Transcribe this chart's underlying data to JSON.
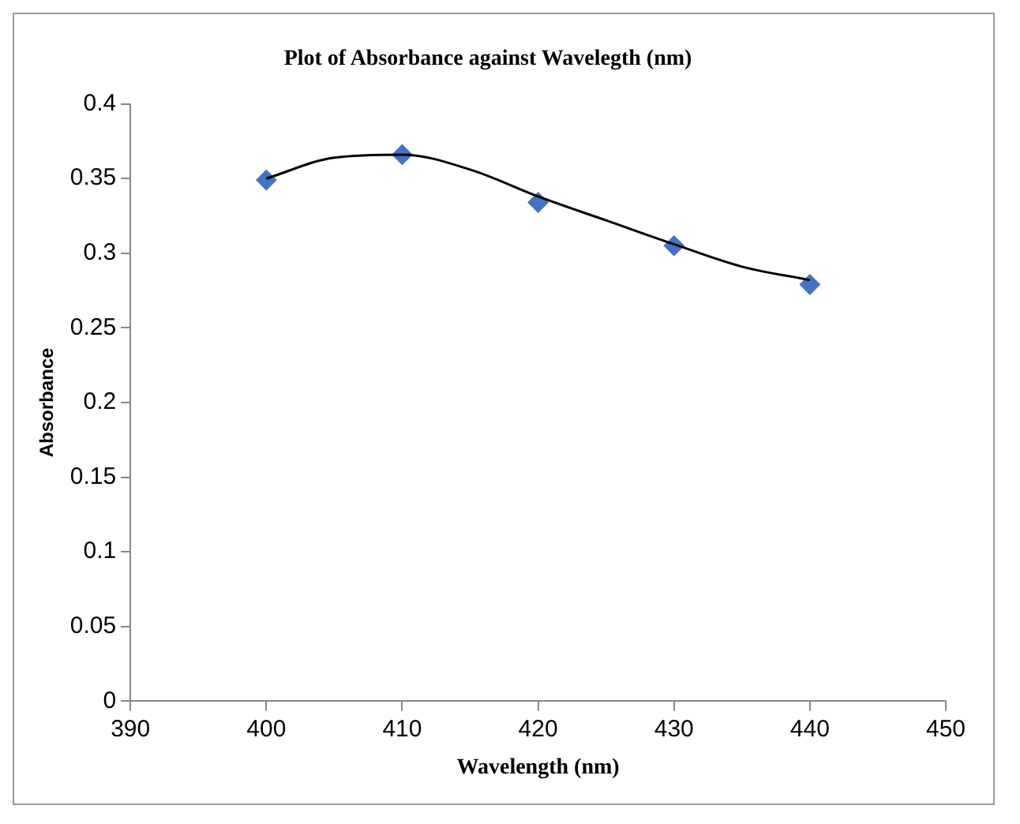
{
  "chart_data": {
    "type": "scatter",
    "title": "Plot of Absorbance against Wavelegth (nm)",
    "xlabel": "Wavelength (nm)",
    "ylabel": "Absorbance",
    "series": [
      {
        "type": "scatter",
        "color": "#4472c4",
        "marker": "diamond",
        "x": [
          400,
          410,
          420,
          430,
          440
        ],
        "values": [
          0.349,
          0.366,
          0.334,
          0.305,
          0.279
        ]
      },
      {
        "type": "line",
        "color": "#000000",
        "marker": "none",
        "line_style": "solid",
        "x": [
          400,
          405,
          410,
          415,
          420,
          425,
          430,
          435,
          440
        ],
        "values": [
          0.35,
          0.364,
          0.366,
          0.356,
          0.338,
          0.322,
          0.306,
          0.291,
          0.282
        ]
      }
    ],
    "xlim": [
      390,
      450
    ],
    "xticks": [
      390,
      400,
      410,
      420,
      430,
      440,
      450
    ],
    "ylim": [
      0,
      0.4
    ],
    "yticks": [
      0,
      0.05,
      0.1,
      0.15,
      0.2,
      0.25,
      0.3,
      0.35,
      0.4
    ],
    "grid": false,
    "legend": false
  }
}
